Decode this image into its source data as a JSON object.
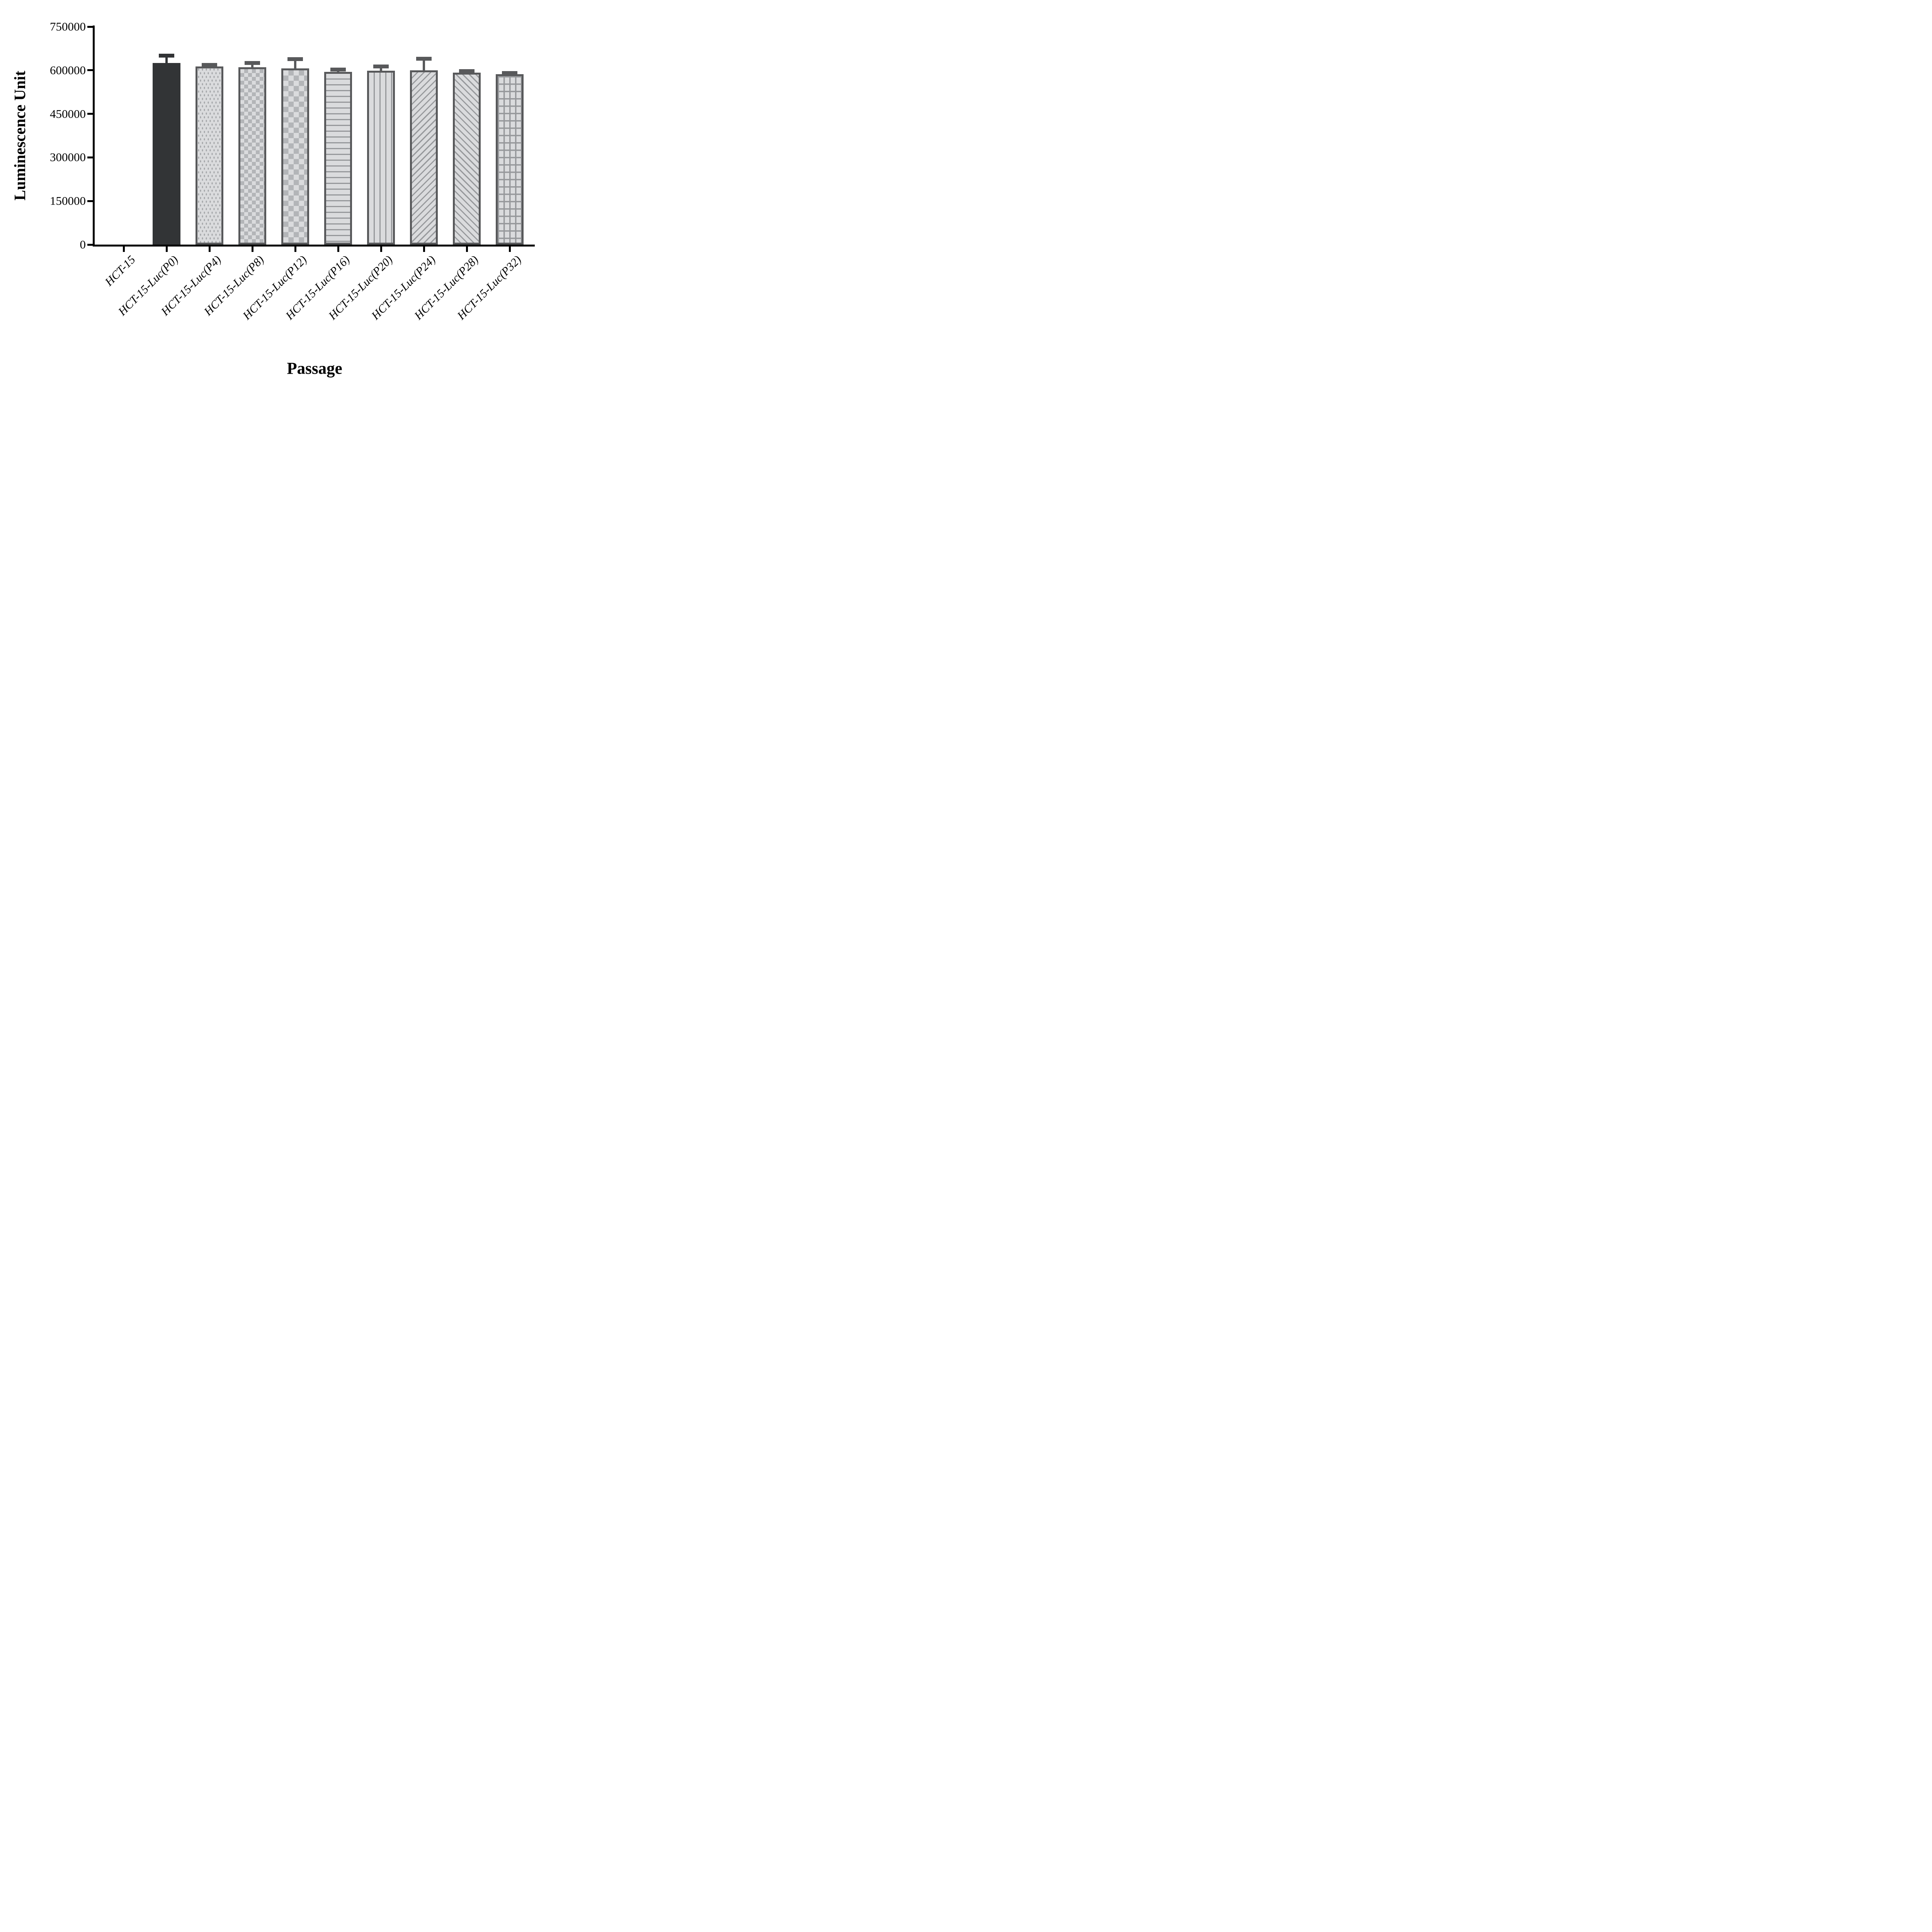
{
  "chart_data": {
    "type": "bar",
    "title": "",
    "xlabel": "Passage",
    "ylabel": "Luminescence Unit",
    "ylim": [
      0,
      750000
    ],
    "ytick_values": [
      0,
      150000,
      300000,
      450000,
      600000,
      750000
    ],
    "grid": false,
    "legend_position": "none",
    "error_bars": "upper SD only, capped",
    "categories": [
      "HCT-15",
      "HCT-15-Luc(P0)",
      "HCT-15-Luc(P4)",
      "HCT-15-Luc(P8)",
      "HCT-15-Luc(P12)",
      "HCT-15-Luc(P16)",
      "HCT-15-Luc(P20)",
      "HCT-15-Luc(P24)",
      "HCT-15-Luc(P28)",
      "HCT-15-Luc(P32)"
    ],
    "values": [
      0,
      625000,
      613000,
      610000,
      606000,
      595000,
      598000,
      600000,
      592000,
      587000
    ],
    "errors": [
      0,
      25000,
      5000,
      15000,
      32000,
      8000,
      15000,
      40000,
      5000,
      4000
    ],
    "bar_styles": [
      {
        "pattern": "none",
        "stroke": "#58595b"
      },
      {
        "pattern": "solid-dark",
        "stroke": "#323436"
      },
      {
        "pattern": "dots",
        "stroke": "#58595b"
      },
      {
        "pattern": "checker-small",
        "stroke": "#58595b"
      },
      {
        "pattern": "checker-large",
        "stroke": "#58595b"
      },
      {
        "pattern": "horizontal-lines",
        "stroke": "#58595b"
      },
      {
        "pattern": "vertical-lines",
        "stroke": "#58595b"
      },
      {
        "pattern": "diagonal-up",
        "stroke": "#58595b"
      },
      {
        "pattern": "diagonal-down",
        "stroke": "#58595b"
      },
      {
        "pattern": "grid",
        "stroke": "#58595b"
      }
    ],
    "colors": {
      "axis": "#000000",
      "solid_bar": "#323436",
      "pattern_fill": "#dadbdd",
      "pattern_ink": "#96989b",
      "bar_border": "#58595b",
      "background": "#ffffff"
    }
  }
}
